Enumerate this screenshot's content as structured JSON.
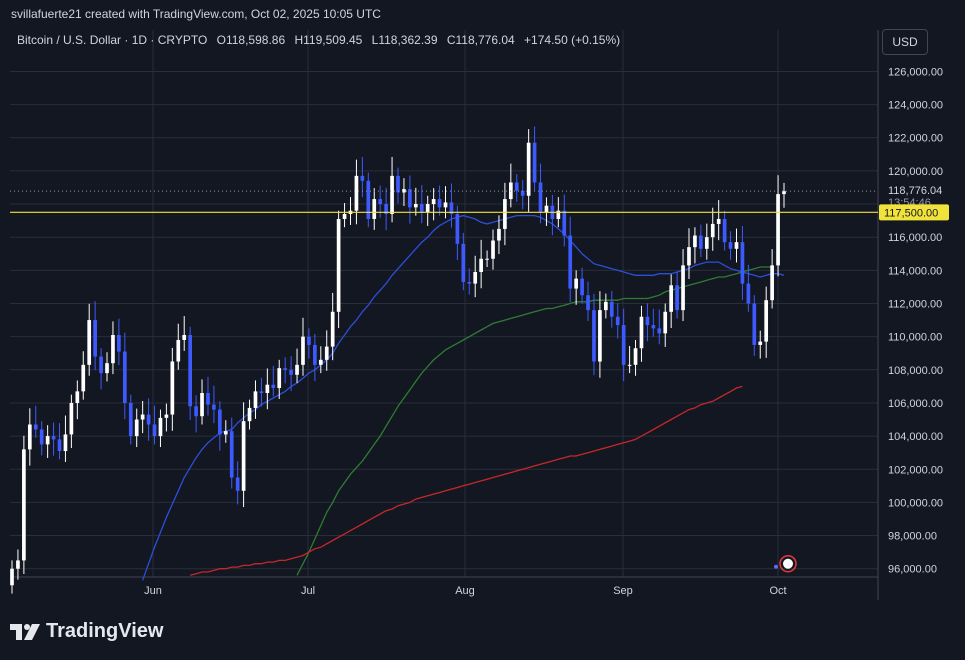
{
  "header": {
    "caption": "svillafuerte21 created with TradingView.com, Oct 02, 2025 10:05 UTC"
  },
  "legend": {
    "symbol": "Bitcoin / U.S. Dollar · 1D · CRYPTO",
    "open": "O118,598.86",
    "high": "H119,509.45",
    "low": "L118,362.39",
    "close": "C118,776.04",
    "change": "+174.50 (+0.15%)"
  },
  "currency": "USD",
  "price_label": {
    "value": "118,776.04",
    "countdown": "13:54:46"
  },
  "level_label": "117,500.00",
  "brand": {
    "name": "TradingView"
  },
  "colors": {
    "background": "#131722",
    "grid": "#2a2e39",
    "text": "#d1d4dc",
    "candle_up": "#ffffff",
    "candle_down": "#3d5afe",
    "level_line": "#f2e33a",
    "ma_blue": "#2c4fd8",
    "ma_green": "#2e7d32",
    "ma_red": "#c62828"
  },
  "chart_data": {
    "type": "candlestick",
    "title": "Bitcoin / U.S. Dollar · 1D · CRYPTO",
    "y_ticks": [
      96000,
      98000,
      100000,
      102000,
      104000,
      106000,
      108000,
      110000,
      112000,
      114000,
      116000,
      118000,
      120000,
      122000,
      124000,
      126000
    ],
    "y_tick_labels": [
      "96,000.00",
      "98,000.00",
      "100,000.00",
      "102,000.00",
      "104,000.00",
      "106,000.00",
      "108,000.00",
      "110,000.00",
      "112,000.00",
      "114,000.00",
      "116,000.00",
      "118,000.00",
      "120,000.00",
      "122,000.00",
      "124,000.00",
      "126,000.00"
    ],
    "x_labels": [
      "Jun",
      "Jul",
      "Aug",
      "Sep",
      "Oct"
    ],
    "ylim": [
      95500,
      128500
    ],
    "horizontal_level": 117500,
    "last_price": 118776.04,
    "closes": [
      96000,
      96500,
      103200,
      104700,
      104400,
      103500,
      104000,
      103800,
      103100,
      104100,
      106000,
      106700,
      108300,
      111000,
      108800,
      107800,
      108400,
      110100,
      109100,
      106000,
      104000,
      105000,
      105300,
      104700,
      104000,
      105100,
      105300,
      108500,
      109800,
      110100,
      105800,
      105200,
      106600,
      105900,
      105600,
      104100,
      104300,
      101500,
      100700,
      104900,
      105700,
      106700,
      106600,
      107100,
      106900,
      108100,
      108000,
      107700,
      108300,
      110000,
      109500,
      108300,
      108600,
      109400,
      111500,
      117100,
      117400,
      117600,
      119700,
      119400,
      117100,
      118300,
      118000,
      117400,
      119700,
      118700,
      118900,
      117800,
      118000,
      117500,
      118000,
      118300,
      117800,
      118100,
      117400,
      115600,
      113300,
      113200,
      113900,
      114700,
      114700,
      115800,
      116500,
      118300,
      119300,
      118800,
      118500,
      121700,
      119300,
      117500,
      117900,
      117100,
      117600,
      116100,
      112900,
      113500,
      112500,
      111600,
      108500,
      111600,
      112100,
      111200,
      110700,
      108300,
      108300,
      109300,
      111200,
      110700,
      110500,
      110200,
      111500,
      113100,
      111600,
      114300,
      115400,
      116100,
      115300,
      116000,
      116800,
      117100,
      115700,
      115300,
      115700,
      113200,
      112000,
      109500,
      109700,
      112200,
      114300,
      118600,
      118776.04
    ],
    "series": [
      {
        "name": "",
        "values": [
          null,
          null,
          null,
          null,
          null,
          null,
          null,
          null,
          null,
          null,
          null,
          null,
          null,
          null,
          null,
          null,
          null,
          null,
          null,
          null,
          null,
          null,
          95300,
          96300,
          97300,
          98200,
          99100,
          99900,
          100700,
          101500,
          102100,
          102700,
          103200,
          103600,
          103900,
          104200,
          104300,
          104400,
          104800,
          105100,
          105400,
          105600,
          105900,
          106100,
          106300,
          106500,
          106700,
          107000,
          107200,
          107500,
          107800,
          108000,
          108300,
          108600,
          109000,
          109600,
          110100,
          110600,
          111000,
          111500,
          111900,
          112400,
          112800,
          113200,
          113700,
          114100,
          114500,
          114900,
          115300,
          115700,
          116000,
          116400,
          116700,
          116900,
          117100,
          117200,
          117300,
          117200,
          117100,
          116900,
          116800,
          116900,
          117000,
          117100,
          117200,
          117300,
          117300,
          117300,
          117300,
          117200,
          117000,
          116800,
          116500,
          116200,
          115800,
          115400,
          115000,
          114700,
          114400,
          114300,
          114200,
          114100,
          114000,
          113900,
          113800,
          113700,
          113700,
          113700,
          113700,
          113800,
          113800,
          113800,
          113900,
          114000,
          114100,
          114300,
          114400,
          114500,
          114500,
          114500,
          114300,
          114100,
          114000,
          113900,
          113800,
          113700,
          113600,
          113700,
          113800,
          113800,
          113700
        ]
      },
      {
        "name": "",
        "values": [
          null,
          null,
          null,
          null,
          null,
          null,
          null,
          null,
          null,
          null,
          null,
          null,
          null,
          null,
          null,
          null,
          null,
          null,
          null,
          null,
          null,
          null,
          null,
          null,
          null,
          null,
          null,
          null,
          null,
          null,
          null,
          null,
          null,
          null,
          null,
          null,
          null,
          null,
          null,
          null,
          null,
          null,
          null,
          null,
          null,
          null,
          null,
          null,
          95600,
          96300,
          97000,
          97800,
          98600,
          99400,
          100000,
          100700,
          101200,
          101700,
          102100,
          102500,
          103000,
          103500,
          104000,
          104600,
          105200,
          105800,
          106300,
          106800,
          107300,
          107800,
          108200,
          108600,
          108900,
          109200,
          109400,
          109600,
          109800,
          110000,
          110200,
          110400,
          110600,
          110800,
          110900,
          111000,
          111100,
          111200,
          111300,
          111400,
          111500,
          111600,
          111700,
          111700,
          111800,
          111900,
          112000,
          112100,
          112100,
          112100,
          112200,
          112200,
          112200,
          112200,
          112200,
          112300,
          112300,
          112300,
          112300,
          112300,
          112400,
          112500,
          112700,
          112800,
          112900,
          113000,
          113100,
          113200,
          113300,
          113400,
          113500,
          113600,
          113600,
          113700,
          113800,
          113900,
          114000,
          114100,
          114200,
          114200,
          114200
        ]
      },
      {
        "name": "",
        "values": [
          null,
          null,
          null,
          null,
          null,
          null,
          null,
          null,
          null,
          null,
          null,
          null,
          null,
          null,
          null,
          null,
          null,
          null,
          null,
          null,
          null,
          null,
          null,
          null,
          null,
          null,
          null,
          null,
          null,
          null,
          95600,
          95700,
          95800,
          95800,
          95900,
          96000,
          96000,
          96100,
          96100,
          96200,
          96200,
          96300,
          96300,
          96400,
          96400,
          96500,
          96500,
          96600,
          96700,
          96800,
          97000,
          97200,
          97300,
          97500,
          97700,
          97900,
          98100,
          98300,
          98500,
          98700,
          98900,
          99100,
          99300,
          99500,
          99600,
          99800,
          99900,
          100000,
          100200,
          100300,
          100400,
          100500,
          100600,
          100700,
          100800,
          100900,
          101000,
          101100,
          101200,
          101300,
          101400,
          101500,
          101600,
          101700,
          101800,
          101900,
          102000,
          102100,
          102200,
          102300,
          102400,
          102500,
          102600,
          102700,
          102800,
          102800,
          102900,
          103000,
          103100,
          103200,
          103300,
          103400,
          103500,
          103600,
          103700,
          103800,
          104000,
          104200,
          104400,
          104600,
          104800,
          105000,
          105200,
          105400,
          105600,
          105700,
          105900,
          106000,
          106100,
          106300,
          106500,
          106700,
          106900,
          107000
        ]
      }
    ]
  }
}
